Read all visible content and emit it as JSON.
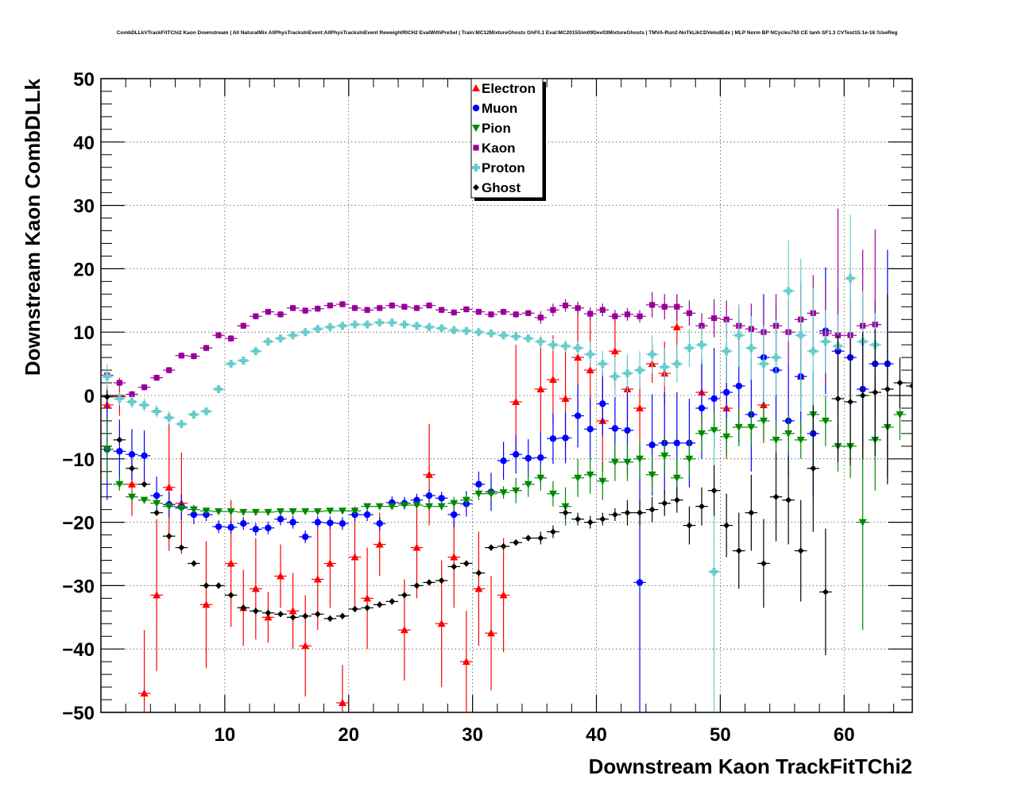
{
  "chart_data": {
    "type": "scatter",
    "title": "CombDLLkVTrackFitTChi2 Kaon Downstream | All NaturalMix AllPhysTracksInEvent:AllPhysTracksInEvent ReweightRICH2 EvalWithPreSel | Train:MC12MixtureGhosts GhF0.1 Eval:MC2015Sim09Dev03MixtureGhosts | TMVA-Run2-NoTkLikCDVelodEdx | MLP Norm BP NCycles750 CE tanh SF1.3 CVTest15:1e-16 !UseReg",
    "xlabel": "Downstream Kaon TrackFitTChi2",
    "ylabel": "Downstream Kaon CombDLLk",
    "xlim": [
      0,
      65.5
    ],
    "ylim": [
      -50,
      50
    ],
    "xticks": [
      10,
      20,
      30,
      40,
      50,
      60
    ],
    "yticks": [
      -50,
      -40,
      -30,
      -20,
      -10,
      0,
      10,
      20,
      30,
      40,
      50
    ],
    "xtick_labels": [
      "10",
      "20",
      "30",
      "40",
      "50",
      "60"
    ],
    "ytick_labels": [
      "−50",
      "−40",
      "−30",
      "−20",
      "−10",
      "0",
      "10",
      "20",
      "30",
      "40",
      "50"
    ],
    "grid": true,
    "legend_position": "top-center",
    "series": [
      {
        "name": "Electron",
        "color": "#ff0000",
        "marker": "triangle-up",
        "x": [
          0.5,
          1.5,
          2.5,
          3.5,
          4.5,
          5.5,
          6.5,
          8.5,
          10.5,
          11.5,
          12.5,
          13.5,
          14.5,
          15.5,
          16.5,
          17.5,
          18.5,
          19.5,
          20.5,
          21.5,
          22.5,
          24.5,
          25.5,
          26.5,
          27.5,
          28.5,
          29.5,
          30.5,
          31.5,
          32.5,
          33.5,
          35.5,
          36.5,
          37.5,
          38.5,
          39.5,
          40.5,
          41.5,
          42.5,
          43.5,
          44.5,
          45.5,
          46.5,
          48.5,
          50.5,
          53.5,
          56.5
        ],
        "y": [
          -1.5,
          -0.2,
          -14,
          -47,
          -31.5,
          -14.5,
          -17,
          -33,
          -26.5,
          -33.5,
          -30.5,
          -35,
          -28.5,
          -34,
          -39.5,
          -29,
          -26.5,
          -48.5,
          -25.5,
          -32,
          -23.5,
          -37,
          -24,
          -12.5,
          -36,
          -25.5,
          -42,
          -30.5,
          -37.5,
          -31.5,
          -1,
          1,
          2.5,
          -0.5,
          6,
          4,
          -4,
          7,
          1,
          -2,
          5,
          3.5,
          10.8,
          0.5,
          -2,
          -1.5,
          3
        ],
        "yerr": [
          3,
          3,
          5,
          10,
          12,
          10,
          8,
          10,
          10,
          6,
          8,
          4,
          5,
          6,
          8,
          8,
          7,
          6,
          8,
          8,
          5,
          8,
          8,
          8,
          10,
          8,
          8,
          9,
          9,
          9,
          9,
          7,
          7,
          8,
          8,
          9,
          8,
          6,
          5,
          5,
          3,
          5,
          5,
          5,
          8,
          6,
          5
        ]
      },
      {
        "name": "Muon",
        "color": "#0000ff",
        "marker": "circle",
        "x": [
          0.5,
          1.5,
          2.5,
          3.5,
          4.5,
          5.5,
          6.5,
          7.5,
          8.5,
          9.5,
          10.5,
          11.5,
          12.5,
          13.5,
          14.5,
          15.5,
          16.5,
          17.5,
          18.5,
          19.5,
          20.5,
          21.5,
          22.5,
          23.5,
          24.5,
          25.5,
          26.5,
          27.5,
          28.5,
          29.5,
          30.5,
          31.5,
          32.5,
          33.5,
          34.5,
          35.5,
          36.5,
          37.5,
          38.5,
          39.5,
          40.5,
          41.5,
          42.5,
          43.5,
          44.5,
          45.5,
          46.5,
          47.5,
          48.5,
          49.5,
          50.5,
          51.5,
          52.5,
          53.5,
          54.5,
          55.5,
          56.5,
          57.5,
          58.5,
          59.5,
          60.5,
          61.5,
          62.5,
          63.5
        ],
        "y": [
          -8.5,
          -8.8,
          -9.3,
          -9.5,
          -15.8,
          -17.2,
          -17.6,
          -18.8,
          -18.8,
          -20.7,
          -20.8,
          -20.2,
          -21.1,
          -20.9,
          -19.5,
          -20,
          -22.3,
          -20,
          -20.1,
          -20.2,
          -18.8,
          -18.8,
          -20.2,
          -16.9,
          -17,
          -16.5,
          -15.8,
          -16.2,
          -18.8,
          -17.1,
          -14,
          -15.2,
          -10.3,
          -9.3,
          -9.9,
          -9.8,
          -6.8,
          -6.7,
          -3.2,
          -5.3,
          -1.3,
          -5.2,
          -5.5,
          -29.5,
          -7.8,
          -7.5,
          -7.5,
          -7.5,
          -2,
          -0.5,
          0.5,
          1.5,
          -3,
          6,
          4,
          -4,
          3,
          -6,
          10.2,
          7,
          6,
          1,
          5,
          5
        ],
        "yerr": [
          8,
          5,
          4,
          4,
          3,
          2,
          2,
          1.5,
          1,
          1,
          1,
          1,
          1,
          1,
          1,
          1,
          1,
          1,
          1,
          1,
          1,
          1,
          1,
          1,
          1,
          1,
          1,
          1,
          2,
          2,
          2,
          3,
          3,
          3,
          3,
          4,
          4,
          4,
          5,
          5,
          5,
          5,
          7,
          22,
          8,
          8,
          8,
          7,
          8,
          8,
          8,
          9,
          9,
          10,
          10,
          9,
          9,
          10,
          10,
          10,
          9,
          9,
          10,
          18
        ]
      },
      {
        "name": "Pion",
        "color": "#008800",
        "marker": "triangle-down",
        "x": [
          0.5,
          1.5,
          2.5,
          3.5,
          4.5,
          5.5,
          6.5,
          7.5,
          8.5,
          9.5,
          10.5,
          11.5,
          12.5,
          13.5,
          14.5,
          15.5,
          16.5,
          17.5,
          18.5,
          19.5,
          20.5,
          21.5,
          22.5,
          23.5,
          24.5,
          25.5,
          26.5,
          27.5,
          28.5,
          29.5,
          30.5,
          31.5,
          32.5,
          33.5,
          34.5,
          35.5,
          36.5,
          37.5,
          38.5,
          39.5,
          40.5,
          41.5,
          42.5,
          43.5,
          44.5,
          45.5,
          46.5,
          47.5,
          48.5,
          49.5,
          50.5,
          51.5,
          52.5,
          53.5,
          54.5,
          55.5,
          56.5,
          57.5,
          58.5,
          59.5,
          60.5,
          61.5,
          62.5,
          63.5,
          64.5
        ],
        "y": [
          -8.5,
          -14,
          -16,
          -16.5,
          -17,
          -17.5,
          -17.8,
          -18,
          -18.2,
          -18.3,
          -18.3,
          -18.4,
          -18.4,
          -18.4,
          -18.3,
          -18.3,
          -18.3,
          -18.3,
          -18.2,
          -18.2,
          -18.2,
          -17.5,
          -17.5,
          -17.5,
          -17.3,
          -17.3,
          -17.5,
          -17.5,
          -17,
          -16.5,
          -15.5,
          -15.5,
          -15.3,
          -15,
          -14,
          -13,
          -15.5,
          -17.5,
          -13,
          -12.5,
          -13.5,
          -10.5,
          -10.5,
          -10,
          -12.5,
          -9.5,
          -13,
          -10,
          -6,
          -5.5,
          -6.5,
          -5,
          -5,
          -4,
          -7,
          -6,
          -7,
          -3,
          -4,
          -8,
          -8,
          -20,
          -7,
          -5,
          -3
        ],
        "yerr": [
          5,
          1,
          0.5,
          0.5,
          0.5,
          0.5,
          0.5,
          0.5,
          0.5,
          0.5,
          0.5,
          0.5,
          0.5,
          0.5,
          0.5,
          0.5,
          0.5,
          0.5,
          0.5,
          0.5,
          0.5,
          0.5,
          0.5,
          0.5,
          0.5,
          0.5,
          0.5,
          0.5,
          1,
          1,
          1,
          1,
          1,
          2,
          2,
          2,
          2,
          3,
          3,
          3,
          3,
          3,
          3,
          3,
          3,
          3,
          3,
          3,
          3,
          3,
          3,
          3,
          3,
          3,
          3,
          3,
          3,
          4,
          4,
          4,
          5,
          17,
          8,
          6,
          4
        ]
      },
      {
        "name": "Kaon",
        "color": "#990099",
        "marker": "square",
        "x": [
          0.5,
          1.5,
          2.5,
          3.5,
          4.5,
          5.5,
          6.5,
          7.5,
          8.5,
          9.5,
          10.5,
          11.5,
          12.5,
          13.5,
          14.5,
          15.5,
          16.5,
          17.5,
          18.5,
          19.5,
          20.5,
          21.5,
          22.5,
          23.5,
          24.5,
          25.5,
          26.5,
          27.5,
          28.5,
          29.5,
          30.5,
          31.5,
          32.5,
          33.5,
          34.5,
          35.5,
          36.5,
          37.5,
          38.5,
          39.5,
          40.5,
          41.5,
          42.5,
          43.5,
          44.5,
          45.5,
          46.5,
          47.5,
          48.5,
          49.5,
          50.5,
          51.5,
          52.5,
          53.5,
          54.5,
          55.5,
          56.5,
          57.5,
          58.5,
          59.5,
          60.5,
          61.5,
          62.5
        ],
        "y": [
          3.2,
          2,
          0.2,
          1.3,
          2.8,
          4,
          6.3,
          6.2,
          7.5,
          9.5,
          9,
          11,
          12.5,
          13.2,
          12.8,
          13.8,
          13.4,
          13.7,
          14.2,
          14.4,
          13.8,
          13.5,
          13.8,
          14.2,
          14,
          13.8,
          14.2,
          13.5,
          13.1,
          13.6,
          13.2,
          12.8,
          13.2,
          12.8,
          13,
          12.3,
          13.5,
          14.2,
          13.8,
          12.9,
          13.5,
          12.5,
          12.8,
          12.5,
          14.3,
          14,
          14,
          13,
          11,
          12.2,
          12,
          11,
          10.5,
          10,
          11,
          10,
          12,
          13,
          9.8,
          9.5,
          9.5,
          11,
          11.2
        ],
        "yerr": [
          1,
          0.5,
          0.5,
          0.5,
          0.5,
          0.5,
          0.5,
          0.5,
          0.5,
          0.5,
          0.5,
          0.5,
          0.5,
          0.5,
          0.5,
          0.5,
          0.5,
          0.5,
          0.5,
          0.5,
          0.5,
          0.5,
          0.5,
          0.5,
          0.5,
          0.5,
          0.5,
          0.5,
          0.5,
          0.5,
          0.5,
          0.5,
          0.5,
          0.5,
          0.5,
          1,
          1,
          1,
          1,
          1,
          1,
          1,
          1,
          1,
          2,
          2,
          2,
          2,
          2,
          3,
          3,
          3,
          4,
          4,
          5,
          5,
          6,
          6,
          8,
          20,
          10,
          12,
          15
        ]
      },
      {
        "name": "Proton",
        "color": "#66cccc",
        "marker": "plus",
        "x": [
          0.5,
          1.5,
          2.5,
          3.5,
          4.5,
          5.5,
          6.5,
          7.5,
          8.5,
          9.5,
          10.5,
          11.5,
          12.5,
          13.5,
          14.5,
          15.5,
          16.5,
          17.5,
          18.5,
          19.5,
          20.5,
          21.5,
          22.5,
          23.5,
          24.5,
          25.5,
          26.5,
          27.5,
          28.5,
          29.5,
          30.5,
          31.5,
          32.5,
          33.5,
          34.5,
          35.5,
          36.5,
          37.5,
          38.5,
          39.5,
          40.5,
          41.5,
          42.5,
          43.5,
          44.5,
          45.5,
          46.5,
          47.5,
          48.5,
          49.5,
          50.5,
          51.5,
          52.5,
          53.5,
          54.5,
          55.5,
          56.5,
          57.5,
          58.5,
          59.5,
          60.5,
          61.5,
          62.5
        ],
        "y": [
          3,
          -0.5,
          -1,
          -1.5,
          -2.5,
          -3.5,
          -4.5,
          -3,
          -2.5,
          1,
          5,
          5.5,
          7,
          8.5,
          9,
          9.5,
          10,
          10.5,
          10.8,
          11,
          11.2,
          11.2,
          11.5,
          11.5,
          11.2,
          11,
          10.8,
          10.6,
          10.3,
          10.2,
          10,
          9.8,
          9.5,
          9.3,
          9,
          8.5,
          8,
          7.8,
          7.5,
          6.5,
          5,
          3,
          3.5,
          4,
          6.5,
          4.5,
          5,
          7.5,
          8,
          -27.8,
          7,
          9.5,
          7.5,
          5,
          6,
          16.5,
          9.5,
          7,
          8.5,
          7.8,
          18.5,
          8.5,
          8
        ],
        "yerr": [
          2,
          1,
          1,
          1,
          1,
          1,
          0.5,
          0.5,
          0.5,
          0.5,
          0.5,
          0.5,
          0.5,
          0.5,
          0.5,
          0.5,
          0.5,
          0.5,
          0.5,
          0.5,
          0.5,
          0.5,
          0.5,
          0.5,
          0.5,
          0.5,
          0.5,
          0.5,
          0.5,
          0.5,
          0.5,
          0.5,
          0.5,
          0.5,
          0.5,
          1,
          1,
          1,
          1,
          2,
          2,
          3,
          3,
          3,
          3,
          3,
          3,
          3,
          3,
          22,
          5,
          5,
          5,
          6,
          6,
          8,
          12,
          10,
          5,
          5,
          10,
          8,
          5
        ]
      },
      {
        "name": "Ghost",
        "color": "#000000",
        "marker": "cross",
        "x": [
          0.5,
          1.5,
          2.5,
          3.5,
          4.5,
          5.5,
          6.5,
          7.5,
          8.5,
          9.5,
          10.5,
          11.5,
          12.5,
          13.5,
          14.5,
          15.5,
          16.5,
          17.5,
          18.5,
          19.5,
          20.5,
          21.5,
          22.5,
          23.5,
          24.5,
          25.5,
          26.5,
          27.5,
          28.5,
          29.5,
          30.5,
          31.5,
          32.5,
          33.5,
          34.5,
          35.5,
          36.5,
          37.5,
          38.5,
          39.5,
          40.5,
          41.5,
          42.5,
          43.5,
          44.5,
          45.5,
          46.5,
          47.5,
          48.5,
          49.5,
          50.5,
          51.5,
          52.5,
          53.5,
          54.5,
          55.5,
          56.5,
          57.5,
          58.5,
          59.5,
          60.5,
          61.5,
          62.5,
          63.5,
          64.5,
          65.5
        ],
        "y": [
          -0.2,
          -7,
          -11.5,
          -14,
          -18.5,
          -22.2,
          -24,
          -26.5,
          -30,
          -30,
          -31.5,
          -33.5,
          -34,
          -34.3,
          -34.5,
          -35,
          -34.8,
          -34.5,
          -35.2,
          -34.8,
          -33.7,
          -33.5,
          -33,
          -32.5,
          -31.5,
          -30,
          -29.5,
          -29.2,
          -27,
          -26.5,
          -28,
          -24,
          -23.8,
          -23.2,
          -22.5,
          -22.5,
          -21.5,
          -18.5,
          -19.5,
          -20,
          -19.5,
          -18.8,
          -18.5,
          -18.5,
          -18,
          -17,
          -16.5,
          -20.5,
          -17.5,
          -15,
          -20.5,
          -24.5,
          -18.5,
          -26.5,
          -16,
          -16.5,
          -24.5,
          -11.5,
          -31,
          -0.5,
          -1,
          0,
          0.5,
          1,
          2,
          1.5
        ],
        "yerr": [
          1,
          0.5,
          0.5,
          0.5,
          0.5,
          0.5,
          0.5,
          0.5,
          0.5,
          0.5,
          0.5,
          0.5,
          0.5,
          0.5,
          0.5,
          0.5,
          0.5,
          0.5,
          0.5,
          0.5,
          0.5,
          0.5,
          0.5,
          0.5,
          0.5,
          0.5,
          0.5,
          0.5,
          0.5,
          0.5,
          0.5,
          0.5,
          0.5,
          0.5,
          0.5,
          1,
          1,
          1,
          1,
          1,
          1,
          1,
          2,
          2,
          2,
          2,
          2,
          3,
          3,
          4,
          5,
          6,
          6,
          7,
          7,
          7,
          8,
          10,
          10,
          10,
          10,
          10,
          10,
          15,
          4,
          3
        ]
      }
    ]
  }
}
